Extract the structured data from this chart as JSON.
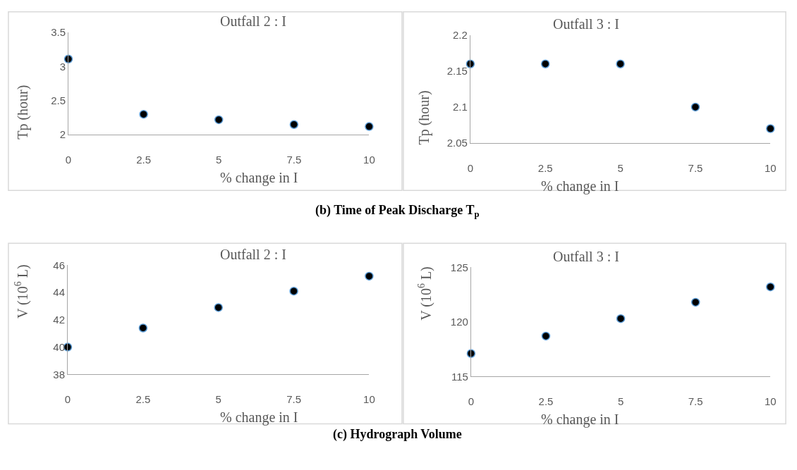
{
  "chart_data": [
    {
      "type": "scatter",
      "title": "Outfall 2 : I",
      "xlabel": "% change in I",
      "ylabel": "Tp (hour)",
      "x": [
        0,
        2.5,
        5,
        7.5,
        10
      ],
      "series": [
        {
          "color": "#000000",
          "values": [
            3.11,
            2.3,
            2.22,
            2.15,
            2.12
          ]
        }
      ],
      "xlim": [
        0,
        10
      ],
      "xticks": [
        0,
        2.5,
        5,
        7.5,
        10
      ],
      "ylim": [
        2,
        3.5
      ],
      "yticks": [
        2,
        2.5,
        3,
        3.5
      ],
      "grid": false,
      "legend": false,
      "marker": "circle"
    },
    {
      "type": "scatter",
      "title": "Outfall 3 : I",
      "xlabel": "% change in I",
      "ylabel": "Tp (hour)",
      "x": [
        0,
        2.5,
        5,
        7.5,
        10
      ],
      "series": [
        {
          "color": "#000000",
          "values": [
            2.16,
            2.16,
            2.16,
            2.1,
            2.07
          ]
        }
      ],
      "xlim": [
        0,
        10
      ],
      "xticks": [
        0,
        2.5,
        5,
        7.5,
        10
      ],
      "ylim": [
        2.05,
        2.2
      ],
      "yticks": [
        2.05,
        2.1,
        2.15,
        2.2
      ],
      "grid": false,
      "legend": false,
      "marker": "circle",
      "annotations": [
        "(b) Time of Peak Discharge T$_{p}$"
      ]
    },
    {
      "type": "scatter",
      "title": "Outfall 2 : I",
      "xlabel": "% change in I",
      "ylabel": "V (10$^{6}$ L)",
      "x": [
        0,
        2.5,
        5,
        7.5,
        10
      ],
      "series": [
        {
          "color": "#000000",
          "values": [
            40.0,
            41.4,
            42.9,
            44.1,
            45.2
          ]
        }
      ],
      "xlim": [
        0,
        10
      ],
      "xticks": [
        0,
        2.5,
        5,
        7.5,
        10
      ],
      "ylim": [
        38,
        46
      ],
      "yticks": [
        38,
        40,
        42,
        44,
        46
      ],
      "grid": false,
      "legend": false,
      "marker": "circle"
    },
    {
      "type": "scatter",
      "title": "Outfall 3 : I",
      "xlabel": "% change in I",
      "ylabel": "V (10$^{6}$ L)",
      "x": [
        0,
        2.5,
        5,
        7.5,
        10
      ],
      "series": [
        {
          "color": "#000000",
          "values": [
            117.1,
            118.7,
            120.3,
            121.8,
            123.2
          ]
        }
      ],
      "xlim": [
        0,
        10
      ],
      "xticks": [
        0,
        2.5,
        5,
        7.5,
        10
      ],
      "ylim": [
        115,
        125
      ],
      "yticks": [
        115,
        120,
        125
      ],
      "grid": false,
      "legend": false,
      "marker": "circle",
      "annotations": [
        "(c) Hydrograph Volume"
      ]
    }
  ]
}
